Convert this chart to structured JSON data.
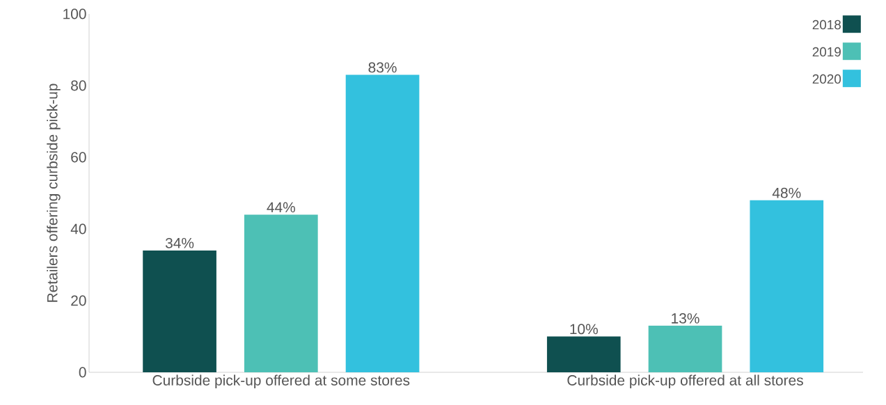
{
  "chart_data": {
    "type": "bar",
    "ylabel": "Retailers offering curbside pick-up",
    "categories": [
      "Curbside pick-up offered at some stores",
      "Curbside pick-up offered at all stores"
    ],
    "series": [
      {
        "name": "2018",
        "color": "#0f5050",
        "values": [
          34,
          10
        ],
        "value_labels": [
          "34%",
          "10%"
        ]
      },
      {
        "name": "2019",
        "color": "#4dc0b5",
        "values": [
          44,
          13
        ],
        "value_labels": [
          "44%",
          "13%"
        ]
      },
      {
        "name": "2020",
        "color": "#33c1de",
        "values": [
          83,
          48
        ],
        "value_labels": [
          "83%",
          "48%"
        ]
      }
    ],
    "ylim": [
      0,
      100
    ],
    "yticks": [
      0,
      20,
      40,
      60,
      80,
      100
    ],
    "legend": "top right"
  }
}
